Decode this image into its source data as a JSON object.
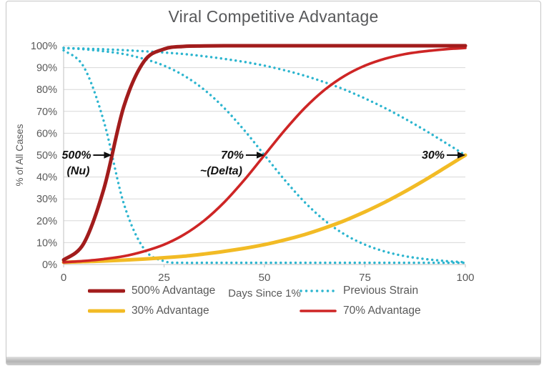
{
  "frame": {
    "background": "#FFFFFF",
    "border_color": "#C6C6C6",
    "bottom_bar_color": "#B3B3B3"
  },
  "chart_data": {
    "type": "line",
    "title": "Viral Competitive Advantage",
    "xlabel": "Days Since 1%",
    "ylabel": "% of All Cases",
    "xlim": [
      0,
      100
    ],
    "ylim": [
      0,
      1
    ],
    "grid": true,
    "legend_position": "bottom",
    "x_ticks": [
      {
        "value": 0,
        "label": "0"
      },
      {
        "value": 25,
        "label": "25"
      },
      {
        "value": 50,
        "label": "50"
      },
      {
        "value": 75,
        "label": "75"
      },
      {
        "value": 100,
        "label": "100"
      }
    ],
    "y_ticks": [
      {
        "value": 0.0,
        "label": "0%"
      },
      {
        "value": 0.1,
        "label": "10%"
      },
      {
        "value": 0.2,
        "label": "20%"
      },
      {
        "value": 0.3,
        "label": "30%"
      },
      {
        "value": 0.4,
        "label": "40%"
      },
      {
        "value": 0.5,
        "label": "50%"
      },
      {
        "value": 0.6,
        "label": "60%"
      },
      {
        "value": 0.7,
        "label": "70%"
      },
      {
        "value": 0.8,
        "label": "80%"
      },
      {
        "value": 0.9,
        "label": "90%"
      },
      {
        "value": 1.0,
        "label": "100%"
      }
    ],
    "x": [
      0,
      5,
      10,
      15,
      20,
      25,
      30,
      35,
      40,
      45,
      50,
      55,
      60,
      65,
      70,
      75,
      80,
      85,
      90,
      95,
      100
    ],
    "series": [
      {
        "name": "Previous Strain (vs 500%)",
        "color": "#2CB5CF",
        "style": "dotted",
        "width": 3.4,
        "values": [
          0.979,
          0.904,
          0.655,
          0.277,
          0.072,
          0.015,
          0.008,
          0.008,
          0.008,
          0.008,
          0.008,
          0.008,
          0.008,
          0.008,
          0.008,
          0.008,
          0.008,
          0.008,
          0.008,
          0.008,
          0.008
        ]
      },
      {
        "name": "Previous Strain (vs 70%)",
        "color": "#2CB5CF",
        "style": "dotted",
        "width": 3.4,
        "values": [
          0.99,
          0.984,
          0.975,
          0.962,
          0.94,
          0.909,
          0.863,
          0.799,
          0.715,
          0.613,
          0.5,
          0.387,
          0.285,
          0.201,
          0.137,
          0.091,
          0.059,
          0.038,
          0.025,
          0.016,
          0.01
        ]
      },
      {
        "name": "Previous Strain (vs 30%)",
        "color": "#2CB5CF",
        "style": "dotted",
        "width": 3.4,
        "values": [
          0.99,
          0.987,
          0.984,
          0.98,
          0.975,
          0.969,
          0.962,
          0.952,
          0.94,
          0.926,
          0.909,
          0.888,
          0.863,
          0.833,
          0.799,
          0.759,
          0.715,
          0.666,
          0.613,
          0.557,
          0.5
        ]
      },
      {
        "name": "30% Advantage",
        "color": "#F2BB25",
        "style": "solid",
        "width": 5,
        "values": [
          0.01,
          0.013,
          0.016,
          0.02,
          0.025,
          0.031,
          0.038,
          0.048,
          0.06,
          0.074,
          0.091,
          0.112,
          0.137,
          0.167,
          0.201,
          0.241,
          0.285,
          0.334,
          0.387,
          0.443,
          0.5
        ]
      },
      {
        "name": "70% Advantage",
        "color": "#CE2525",
        "style": "solid",
        "width": 3.6,
        "values": [
          0.01,
          0.016,
          0.025,
          0.038,
          0.06,
          0.091,
          0.137,
          0.201,
          0.285,
          0.387,
          0.5,
          0.613,
          0.715,
          0.799,
          0.863,
          0.909,
          0.941,
          0.962,
          0.975,
          0.984,
          0.99
        ]
      },
      {
        "name": "500% Advantage",
        "color": "#A21C1C",
        "style": "solid",
        "width": 5,
        "values": [
          0.021,
          0.096,
          0.345,
          0.723,
          0.928,
          0.985,
          0.997,
          0.999,
          1,
          1,
          1,
          1,
          1,
          1,
          1,
          1,
          1,
          1,
          1,
          1,
          1
        ]
      }
    ],
    "annotations": [
      {
        "label": "500%",
        "sublabel": "(Nu)",
        "x": 12,
        "y": 0.5
      },
      {
        "label": "70%",
        "sublabel": "~(Delta)",
        "x": 50,
        "y": 0.5
      },
      {
        "label": "30%",
        "sublabel": "",
        "x": 100,
        "y": 0.5
      }
    ],
    "legend": [
      {
        "label": "500% Advantage",
        "color": "#A21C1C",
        "style": "solid",
        "width": 5
      },
      {
        "label": "Previous Strain",
        "color": "#2CB5CF",
        "style": "dotted",
        "width": 3.4
      },
      {
        "label": "30% Advantage",
        "color": "#F2BB25",
        "style": "solid",
        "width": 5
      },
      {
        "label": "70% Advantage",
        "color": "#CE2525",
        "style": "solid",
        "width": 3.6
      }
    ]
  }
}
